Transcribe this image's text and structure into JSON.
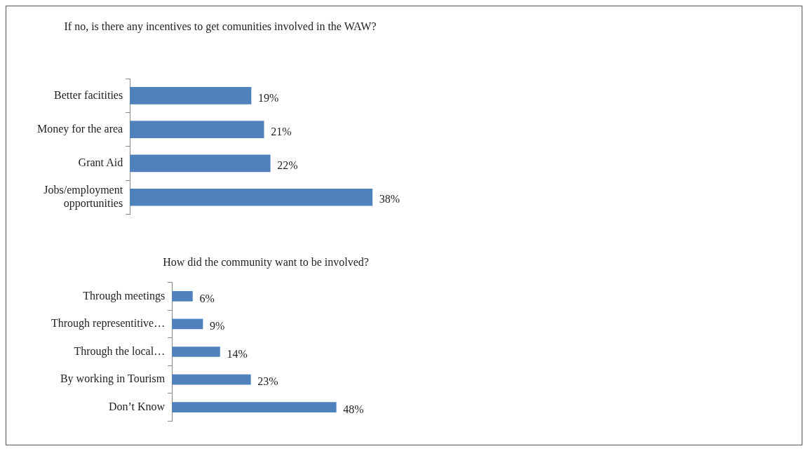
{
  "chart_data": [
    {
      "type": "bar",
      "orientation": "horizontal",
      "title": "If no, is there any incentives to get comunities involved in the WAW?",
      "categories": [
        "Better facitities",
        "Money for the area",
        "Grant Aid",
        "Jobs/employment opportunities"
      ],
      "values": [
        19,
        21,
        22,
        38
      ],
      "value_labels": [
        "19%",
        "21%",
        "22%",
        "38%"
      ],
      "color": "#4f81bd"
    },
    {
      "type": "bar",
      "orientation": "horizontal",
      "title": "How did the community want to be involved?",
      "categories": [
        "Through meetings",
        "Through representitive…",
        "Through the local…",
        "By working in Tourism",
        "Don’t Know"
      ],
      "values": [
        6,
        9,
        14,
        23,
        48
      ],
      "value_labels": [
        "6%",
        "9%",
        "14%",
        "23%",
        "48%"
      ],
      "color": "#4f81bd"
    }
  ]
}
